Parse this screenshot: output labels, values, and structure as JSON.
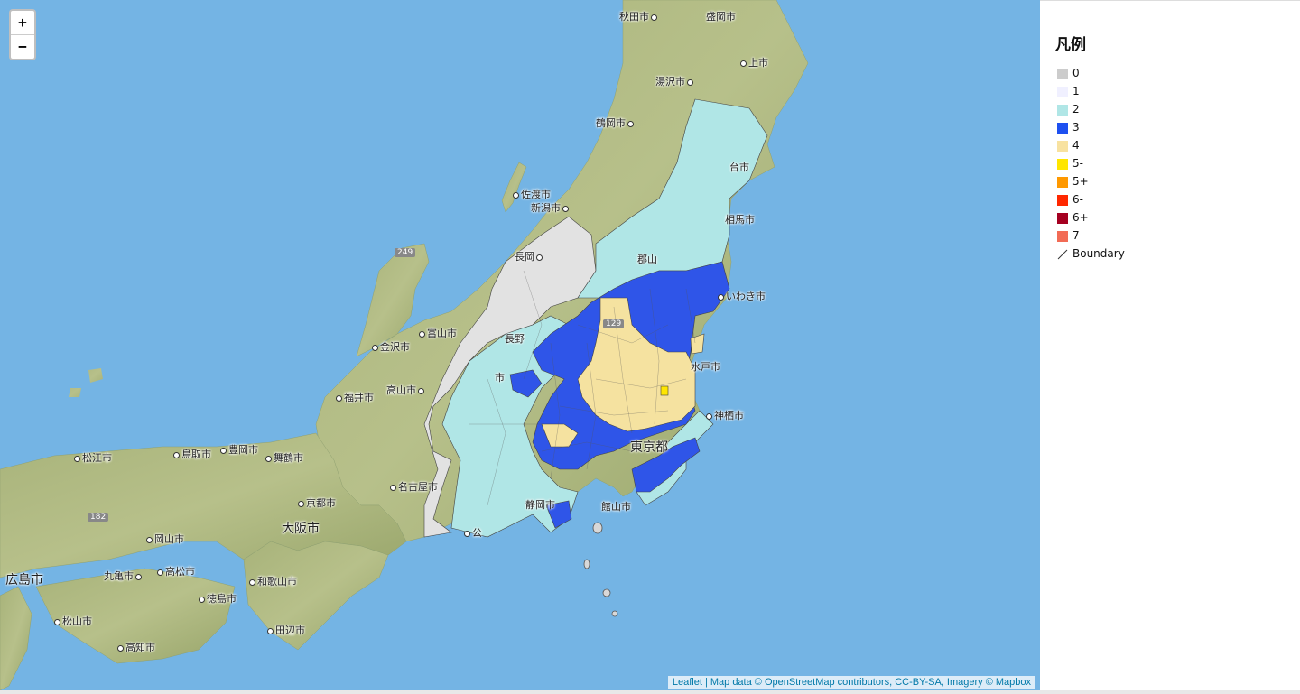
{
  "map": {
    "zoom_in": "+",
    "zoom_out": "−",
    "attribution": {
      "leaflet": "Leaflet",
      "rest": " | Map data © OpenStreetMap contributors, CC-BY-SA, Imagery © Mapbox"
    },
    "road_shields": [
      "249",
      "182",
      "129"
    ],
    "cities": [
      {
        "id": "akita",
        "label": "秋田市"
      },
      {
        "id": "morioka",
        "label": "盛岡市"
      },
      {
        "id": "kamaishi",
        "label": "上市"
      },
      {
        "id": "yuzawa",
        "label": "湯沢市"
      },
      {
        "id": "tsuruoka",
        "label": "鶴岡市"
      },
      {
        "id": "sendai",
        "label": "台市"
      },
      {
        "id": "sado",
        "label": "佐渡市"
      },
      {
        "id": "niigata",
        "label": "新潟市"
      },
      {
        "id": "soma",
        "label": "相馬市"
      },
      {
        "id": "nagaoka",
        "label": "長岡"
      },
      {
        "id": "koriyama",
        "label": "郡山"
      },
      {
        "id": "iwaki",
        "label": "いわき市"
      },
      {
        "id": "toyama",
        "label": "富山市"
      },
      {
        "id": "nagano",
        "label": "長野"
      },
      {
        "id": "kanazawa",
        "label": "金沢市"
      },
      {
        "id": "mito",
        "label": "水戸市"
      },
      {
        "id": "fukui",
        "label": "福井市"
      },
      {
        "id": "takayama",
        "label": "高山市"
      },
      {
        "id": "kamisu",
        "label": "神栖市"
      },
      {
        "id": "tokyo",
        "label": "東京都"
      },
      {
        "id": "matsue",
        "label": "松江市"
      },
      {
        "id": "tottori",
        "label": "鳥取市"
      },
      {
        "id": "toyooka",
        "label": "豊岡市"
      },
      {
        "id": "maizuru",
        "label": "舞鶴市"
      },
      {
        "id": "nagoya",
        "label": "名古屋市"
      },
      {
        "id": "kyoto",
        "label": "京都市"
      },
      {
        "id": "shizuoka",
        "label": "静岡市"
      },
      {
        "id": "tateyama",
        "label": "館山市"
      },
      {
        "id": "osaka",
        "label": "大阪市"
      },
      {
        "id": "okayama",
        "label": "岡山市"
      },
      {
        "id": "hiroshima",
        "label": "広島市"
      },
      {
        "id": "marugame",
        "label": "丸亀市"
      },
      {
        "id": "takamatsu",
        "label": "高松市"
      },
      {
        "id": "wakayama",
        "label": "和歌山市"
      },
      {
        "id": "tokushima",
        "label": "徳島市"
      },
      {
        "id": "matsuyama",
        "label": "松山市"
      },
      {
        "id": "tanabe",
        "label": "田辺市"
      },
      {
        "id": "kochi",
        "label": "高知市"
      },
      {
        "id": "kosai",
        "label": "公"
      },
      {
        "id": "shima",
        "label": "市"
      }
    ]
  },
  "legend": {
    "title": "凡例",
    "items": [
      {
        "label": "0",
        "color": "#cccccc"
      },
      {
        "label": "1",
        "color": "#f0f0ff"
      },
      {
        "label": "2",
        "color": "#b0e6e6"
      },
      {
        "label": "3",
        "color": "#1e50f0"
      },
      {
        "label": "4",
        "color": "#f8e2a0"
      },
      {
        "label": "5-",
        "color": "#ffe600"
      },
      {
        "label": "5+",
        "color": "#ff9900"
      },
      {
        "label": "6-",
        "color": "#ff2800"
      },
      {
        "label": "6+",
        "color": "#a50021"
      },
      {
        "label": "7",
        "color": "#f26b55"
      }
    ],
    "boundary_label": "Boundary"
  }
}
